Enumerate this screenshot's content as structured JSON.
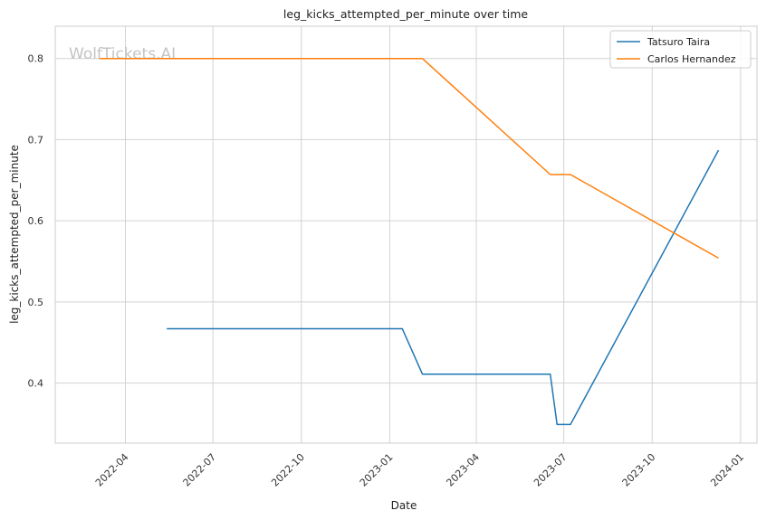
{
  "chart_data": {
    "type": "line",
    "title": "leg_kicks_attempted_per_minute over time",
    "xlabel": "Date",
    "ylabel": "leg_kicks_attempted_per_minute",
    "watermark": "WolfTickets.AI",
    "x_ticks": [
      "2022-04",
      "2022-07",
      "2022-10",
      "2023-01",
      "2023-04",
      "2023-07",
      "2023-10",
      "2024-01"
    ],
    "y_ticks": [
      0.4,
      0.5,
      0.6,
      0.7,
      0.8
    ],
    "xlim": [
      "2022-01-18",
      "2024-01-18"
    ],
    "ylim": [
      0.326,
      0.8398
    ],
    "grid": true,
    "legend_position": "top-right",
    "series": [
      {
        "name": "Tatsuro Taira",
        "color": "#1f77b4",
        "points": [
          {
            "x": "2022-05-14",
            "y": 0.467
          },
          {
            "x": "2023-01-14",
            "y": 0.467
          },
          {
            "x": "2023-02-04",
            "y": 0.411
          },
          {
            "x": "2023-06-17",
            "y": 0.411
          },
          {
            "x": "2023-06-24",
            "y": 0.349
          },
          {
            "x": "2023-07-08",
            "y": 0.349
          },
          {
            "x": "2023-12-09",
            "y": 0.687
          }
        ]
      },
      {
        "name": "Carlos Hernandez",
        "color": "#ff7f0e",
        "points": [
          {
            "x": "2022-03-05",
            "y": 0.8
          },
          {
            "x": "2023-02-04",
            "y": 0.8
          },
          {
            "x": "2023-06-17",
            "y": 0.657
          },
          {
            "x": "2023-07-08",
            "y": 0.657
          },
          {
            "x": "2023-12-09",
            "y": 0.554
          }
        ]
      }
    ]
  }
}
